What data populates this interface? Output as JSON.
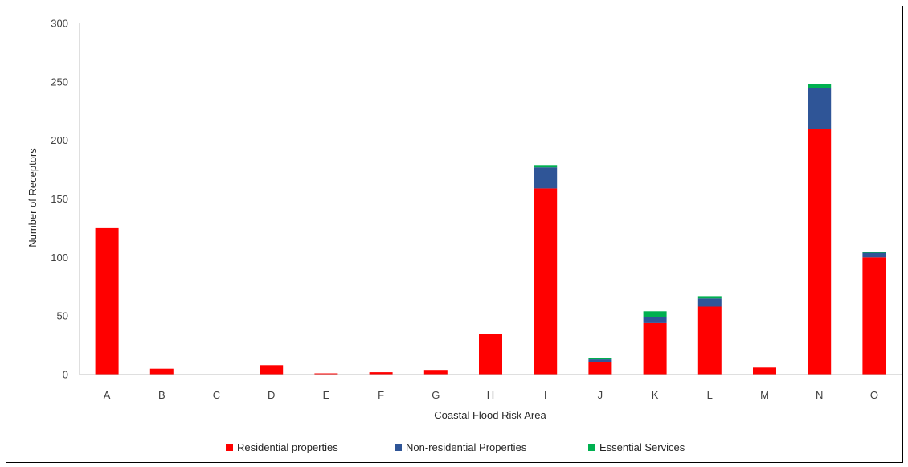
{
  "chart_data": {
    "type": "bar",
    "stacked": true,
    "title": "",
    "xlabel": "Coastal Flood Risk Area",
    "ylabel": "Number of Receptors",
    "ylim": [
      0,
      300
    ],
    "yticks": [
      0,
      50,
      100,
      150,
      200,
      250,
      300
    ],
    "grid": false,
    "legend_position": "bottom",
    "categories": [
      "A",
      "B",
      "C",
      "D",
      "E",
      "F",
      "G",
      "H",
      "I",
      "J",
      "K",
      "L",
      "M",
      "N",
      "O"
    ],
    "series": [
      {
        "name": "Residential properties",
        "color": "#ff0000",
        "values": [
          125,
          5,
          0,
          8,
          1,
          2,
          4,
          35,
          159,
          11,
          44,
          58,
          6,
          210,
          100
        ]
      },
      {
        "name": "Non-residential Properties",
        "color": "#2f5597",
        "values": [
          0,
          0,
          0,
          0,
          0,
          0,
          0,
          0,
          18,
          2,
          5,
          7,
          0,
          35,
          4
        ]
      },
      {
        "name": "Essential Services",
        "color": "#00b050",
        "values": [
          0,
          0,
          0,
          0,
          0,
          0,
          0,
          0,
          2,
          1,
          5,
          2,
          0,
          3,
          1
        ]
      }
    ]
  }
}
